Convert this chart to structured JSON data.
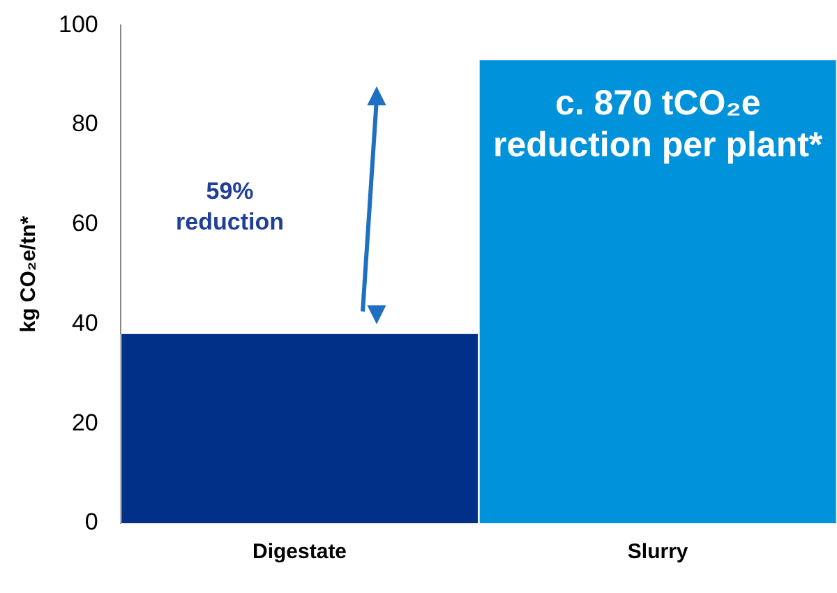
{
  "chart_data": {
    "type": "bar",
    "categories": [
      "Digestate",
      "Slurry"
    ],
    "values": [
      38,
      93
    ],
    "colors": [
      "#003087",
      "#0092da"
    ],
    "ylabel": "kg CO₂e/tn*",
    "ylim": [
      0,
      100
    ],
    "yticks": [
      0,
      20,
      40,
      60,
      80,
      100
    ],
    "grid": false,
    "legend": false,
    "annotations": [
      "59% reduction",
      "c. 870 tCO₂e reduction per plant*"
    ]
  }
}
